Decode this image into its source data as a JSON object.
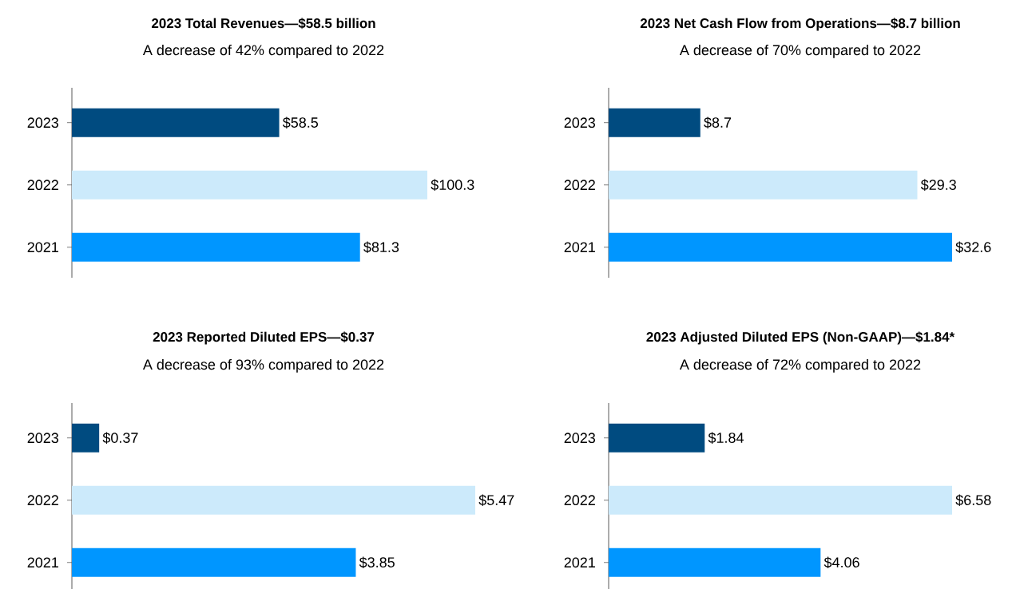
{
  "chart_data": [
    {
      "type": "bar",
      "orientation": "horizontal",
      "title": "2023 Total Revenues—$58.5 billion",
      "subtitle": "A decrease of 42% compared to 2022",
      "categories": [
        "2023",
        "2022",
        "2021"
      ],
      "values": [
        58.5,
        100.3,
        81.3
      ],
      "value_labels": [
        "$58.5",
        "$100.3",
        "$81.3"
      ],
      "colors": [
        "#004b80",
        "#cceafb",
        "#0096ff"
      ]
    },
    {
      "type": "bar",
      "orientation": "horizontal",
      "title": "2023 Net Cash Flow from Operations—$8.7 billion",
      "subtitle": "A decrease of 70% compared to 2022",
      "categories": [
        "2023",
        "2022",
        "2021"
      ],
      "values": [
        8.7,
        29.3,
        32.6
      ],
      "value_labels": [
        "$8.7",
        "$29.3",
        "$32.6"
      ],
      "colors": [
        "#004b80",
        "#cceafb",
        "#0096ff"
      ]
    },
    {
      "type": "bar",
      "orientation": "horizontal",
      "title": "2023 Reported Diluted EPS—$0.37",
      "subtitle": "A decrease of 93% compared to 2022",
      "categories": [
        "2023",
        "2022",
        "2021"
      ],
      "values": [
        0.37,
        5.47,
        3.85
      ],
      "value_labels": [
        "$0.37",
        "$5.47",
        "$3.85"
      ],
      "colors": [
        "#004b80",
        "#cceafb",
        "#0096ff"
      ]
    },
    {
      "type": "bar",
      "orientation": "horizontal",
      "title": "2023 Adjusted Diluted EPS (Non-GAAP)—$1.84*",
      "subtitle": "A decrease of 72% compared to 2022",
      "categories": [
        "2023",
        "2022",
        "2021"
      ],
      "values": [
        1.84,
        6.58,
        4.06
      ],
      "value_labels": [
        "$1.84",
        "$6.58",
        "$4.06"
      ],
      "colors": [
        "#004b80",
        "#cceafb",
        "#0096ff"
      ]
    }
  ]
}
